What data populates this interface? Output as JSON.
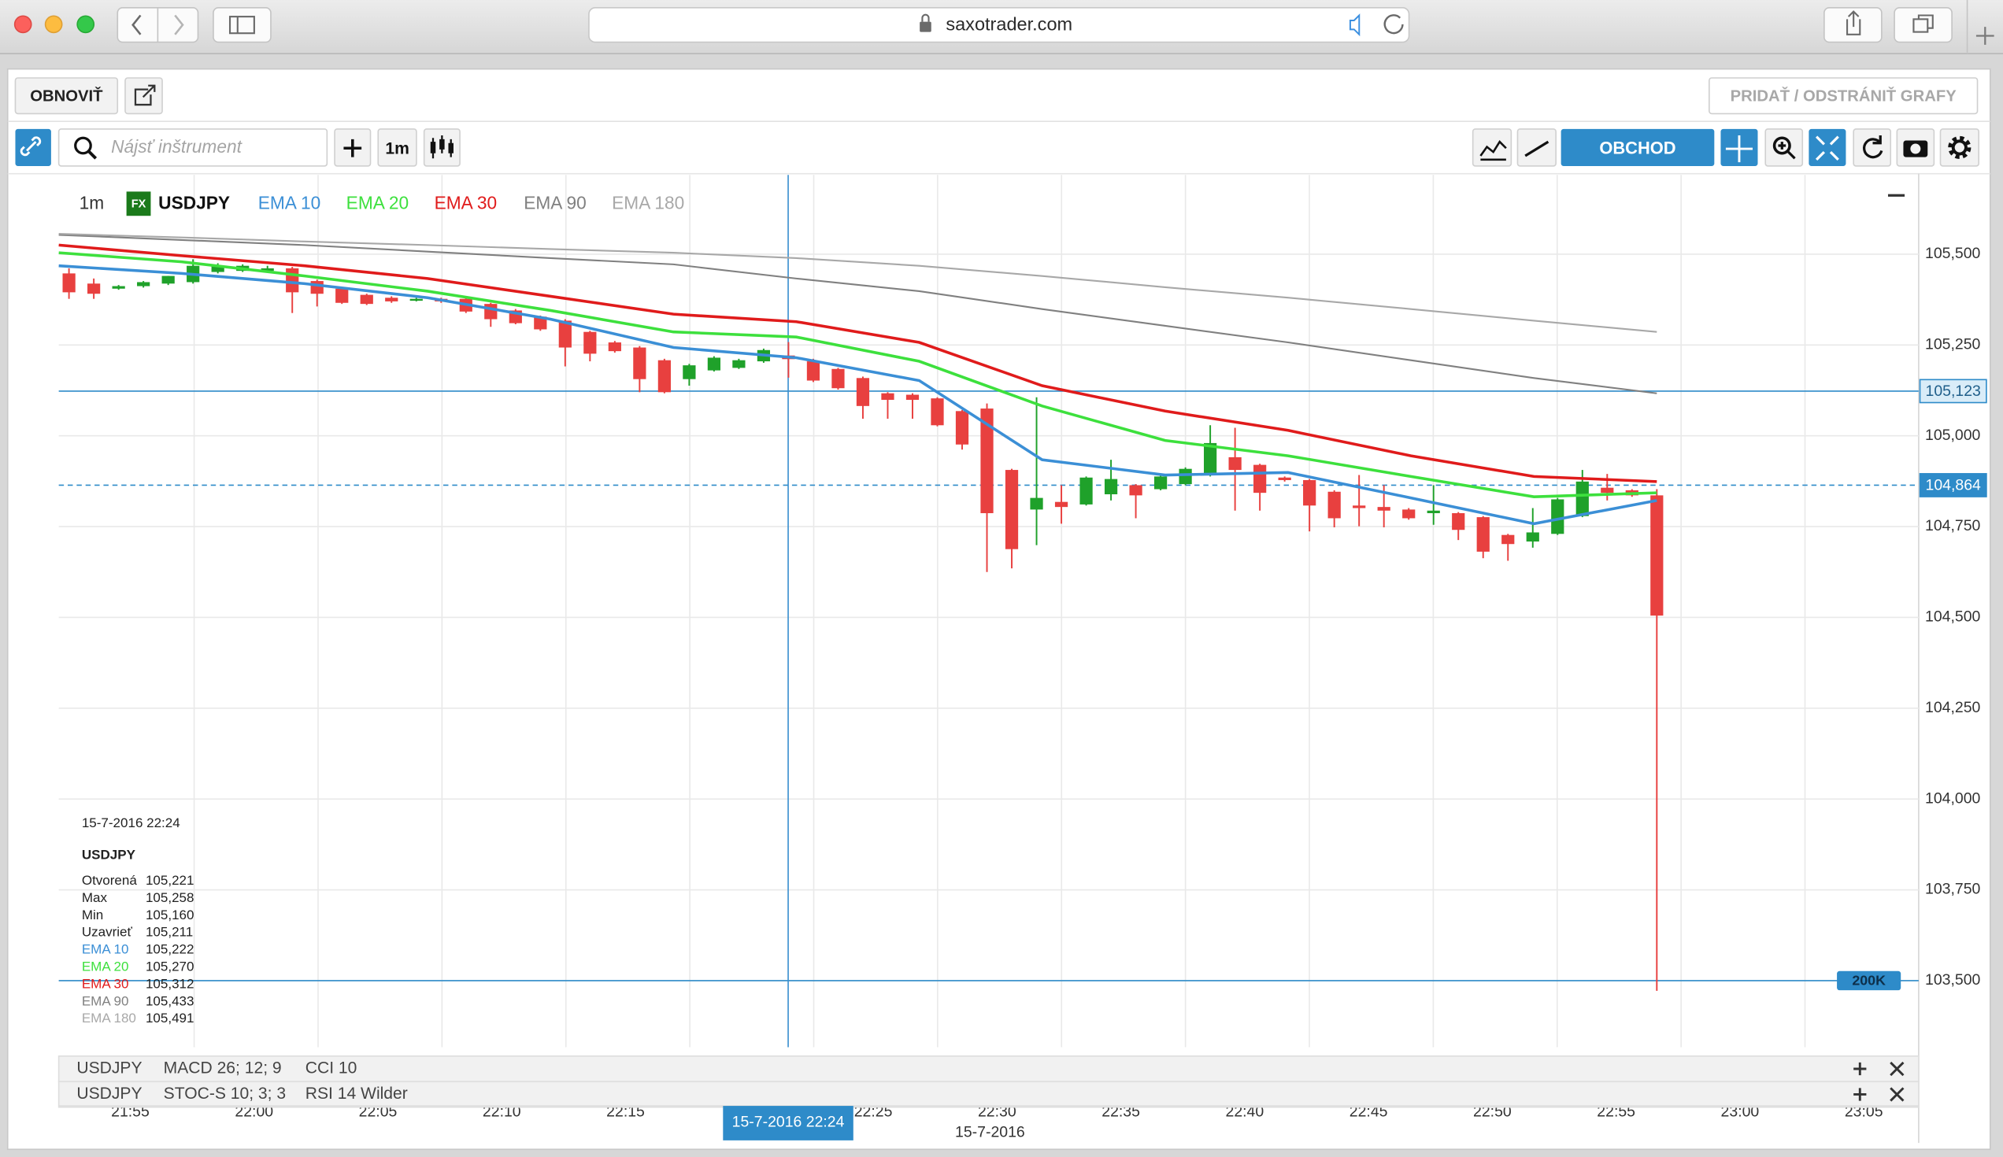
{
  "browser": {
    "url": "saxotrader.com"
  },
  "toolbar": {
    "refresh": "OBNOVIŤ",
    "add_remove": "PRIDAŤ / ODSTRÁNIŤ GRAFY",
    "search_placeholder": "Nájsť inštrument",
    "interval": "1m",
    "trade": "OBCHOD"
  },
  "chart_data": {
    "type": "candlestick",
    "interval": "1m",
    "instrument_tag": "FX",
    "instrument": "USDJPY",
    "up_color": "#1fa12a",
    "down_color": "#e8403f",
    "candles": {
      "open": [
        105.447,
        105.419,
        105.405,
        105.412,
        105.419,
        105.423,
        105.451,
        105.454,
        105.454,
        105.461,
        105.426,
        105.405,
        105.388,
        105.38,
        105.373,
        105.377,
        105.377,
        105.363,
        105.345,
        105.328,
        105.317,
        105.286,
        105.257,
        105.243,
        105.208,
        105.156,
        105.18,
        105.187,
        105.205,
        105.221,
        105.205,
        105.184,
        105.159,
        105.117,
        105.113,
        105.103,
        105.068,
        105.075,
        104.906,
        104.797,
        104.818,
        104.811,
        104.839,
        104.864,
        104.853,
        104.867,
        104.892,
        104.941,
        104.92,
        104.885,
        104.878,
        104.846,
        104.808,
        104.804,
        104.797,
        104.787,
        104.787,
        104.776,
        104.727,
        104.709,
        104.73,
        104.779,
        104.857,
        104.85,
        104.836
      ],
      "high": [
        105.461,
        105.433,
        105.415,
        105.426,
        105.44,
        105.486,
        105.475,
        105.472,
        105.468,
        105.465,
        105.43,
        105.408,
        105.391,
        105.384,
        105.38,
        105.38,
        105.38,
        105.366,
        105.349,
        105.331,
        105.321,
        105.289,
        105.261,
        105.247,
        105.212,
        105.198,
        105.219,
        105.212,
        105.24,
        105.258,
        105.212,
        105.187,
        105.163,
        105.12,
        105.117,
        105.106,
        105.071,
        105.089,
        104.909,
        105.106,
        104.864,
        104.888,
        104.934,
        104.867,
        104.892,
        104.913,
        105.029,
        105.022,
        104.923,
        104.888,
        104.881,
        104.85,
        104.892,
        104.864,
        104.801,
        104.864,
        104.79,
        104.779,
        104.73,
        104.801,
        104.829,
        104.906,
        104.895,
        104.853,
        104.853
      ],
      "low": [
        105.377,
        105.377,
        105.402,
        105.408,
        105.415,
        105.419,
        105.447,
        105.451,
        105.451,
        105.338,
        105.356,
        105.363,
        105.36,
        105.366,
        105.37,
        105.366,
        105.338,
        105.3,
        105.307,
        105.289,
        105.191,
        105.205,
        105.229,
        105.12,
        105.117,
        105.138,
        105.177,
        105.184,
        105.201,
        105.16,
        105.148,
        105.127,
        105.047,
        105.047,
        105.047,
        105.026,
        104.962,
        104.625,
        104.635,
        104.699,
        104.758,
        104.808,
        104.822,
        104.773,
        104.85,
        104.864,
        104.888,
        104.794,
        104.794,
        104.874,
        104.737,
        104.748,
        104.751,
        104.748,
        104.769,
        104.755,
        104.713,
        104.663,
        104.656,
        104.692,
        104.727,
        104.776,
        104.822,
        104.832,
        103.472
      ],
      "close": [
        105.395,
        105.391,
        105.412,
        105.423,
        105.44,
        105.468,
        105.468,
        105.468,
        105.461,
        105.395,
        105.391,
        105.366,
        105.363,
        105.37,
        105.377,
        105.37,
        105.342,
        105.321,
        105.31,
        105.293,
        105.243,
        105.226,
        105.233,
        105.156,
        105.12,
        105.194,
        105.215,
        105.208,
        105.236,
        105.211,
        105.152,
        105.131,
        105.082,
        105.099,
        105.099,
        105.029,
        104.976,
        104.787,
        104.688,
        104.829,
        104.804,
        104.885,
        104.881,
        104.836,
        104.888,
        104.909,
        104.98,
        104.906,
        104.843,
        104.878,
        104.808,
        104.773,
        104.801,
        104.794,
        104.773,
        104.794,
        104.741,
        104.681,
        104.702,
        104.734,
        104.825,
        104.874,
        104.843,
        104.836,
        104.505
      ]
    },
    "series": [
      {
        "name": "EMA 10",
        "color": "#3b8fd6",
        "values": [
          105.468,
          105.447,
          105.419,
          105.38,
          105.321,
          105.243,
          105.215,
          105.152,
          104.934,
          104.892,
          104.899,
          104.829,
          104.758,
          104.822
        ]
      },
      {
        "name": "EMA 20",
        "color": "#3de03d",
        "values": [
          105.504,
          105.479,
          105.44,
          105.398,
          105.345,
          105.286,
          105.272,
          105.205,
          105.082,
          104.987,
          104.945,
          104.888,
          104.832,
          104.843
        ]
      },
      {
        "name": "EMA 30",
        "color": "#e01b1b",
        "values": [
          105.525,
          105.496,
          105.468,
          105.433,
          105.384,
          105.335,
          105.314,
          105.257,
          105.138,
          105.068,
          105.015,
          104.945,
          104.888,
          104.874
        ]
      },
      {
        "name": "EMA 90",
        "color": "#808080",
        "values": [
          105.553,
          105.539,
          105.525,
          105.507,
          105.489,
          105.472,
          105.433,
          105.398,
          105.349,
          105.303,
          105.257,
          105.208,
          105.159,
          105.117
        ]
      },
      {
        "name": "EMA 180",
        "color": "#a8a8a8",
        "values": [
          105.556,
          105.546,
          105.535,
          105.525,
          105.514,
          105.504,
          105.489,
          105.468,
          105.44,
          105.409,
          105.38,
          105.349,
          105.317,
          105.286
        ]
      }
    ],
    "ylim": [
      103.317,
      105.718
    ],
    "yticks": [
      {
        "value": 103.5,
        "label": "103,500"
      },
      {
        "value": 103.75,
        "label": "103,750"
      },
      {
        "value": 104,
        "label": "104,000"
      },
      {
        "value": 104.25,
        "label": "104,250"
      },
      {
        "value": 104.5,
        "label": "104,500"
      },
      {
        "value": 104.75,
        "label": "104,750"
      },
      {
        "value": 105,
        "label": "105,000"
      },
      {
        "value": 105.25,
        "label": "105,250"
      },
      {
        "value": 105.5,
        "label": "105,500"
      }
    ],
    "grid": true,
    "xticks": [
      "21:55",
      "22:00",
      "22:05",
      "22:10",
      "22:15",
      null,
      "22:25",
      "22:30",
      "22:35",
      "22:40",
      "22:45",
      "22:50",
      "22:55",
      "23:00",
      "23:05"
    ],
    "date": "15-7-2016",
    "crosshair_label": "15-7-2016 22:24",
    "levels": [
      {
        "value": 105.123,
        "label": "105,123",
        "color": "#2e8bc9",
        "style": "solid"
      },
      {
        "value": 104.864,
        "label": "104,864",
        "color": "#2e8bc9",
        "style": "dashed"
      }
    ],
    "order_line": {
      "value": 103.5,
      "label": "200K",
      "color": "#2e8bc9"
    }
  },
  "tooltip": {
    "time": "15-7-2016 22:24",
    "instrument": "USDJPY",
    "rows": [
      [
        "Otvorená",
        "105,221"
      ],
      [
        "Max",
        "105,258"
      ],
      [
        "Min",
        "105,160"
      ],
      [
        "Uzavrieť",
        "105,211"
      ],
      [
        "EMA 10",
        "105,222"
      ],
      [
        "EMA 20",
        "105,270"
      ],
      [
        "EMA 30",
        "105,312"
      ],
      [
        "EMA 90",
        "105,433"
      ],
      [
        "EMA 180",
        "105,491"
      ]
    ]
  },
  "panels": [
    [
      "USDJPY",
      "MACD 26; 12; 9",
      "CCI 10"
    ],
    [
      "USDJPY",
      "STOC-S 10; 3; 3",
      "RSI 14 Wilder"
    ]
  ]
}
